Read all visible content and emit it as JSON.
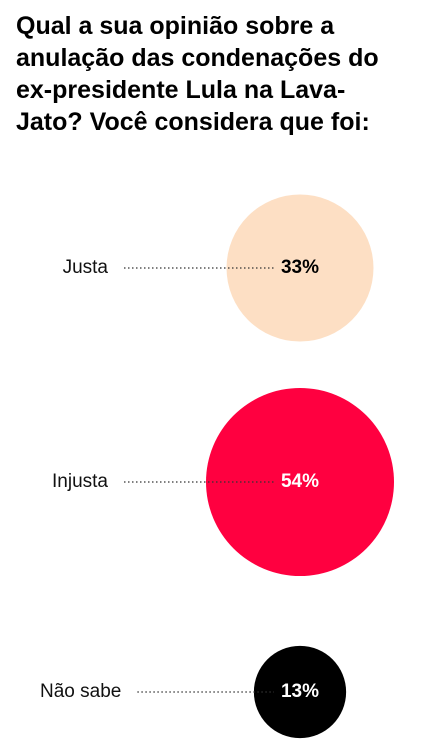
{
  "chart_data": {
    "type": "bubble",
    "title": "Qual a sua opinião sobre a anulação das condenações do ex-presidente Lula na Lava-Jato? Você considera que foi:",
    "categories": [
      "Justa",
      "Injusta",
      "Não sabe"
    ],
    "values": [
      33,
      54,
      13
    ],
    "value_labels": [
      "33%",
      "54%",
      "13%"
    ],
    "colors": [
      "#fddfc4",
      "#ff0040",
      "#000000"
    ]
  }
}
